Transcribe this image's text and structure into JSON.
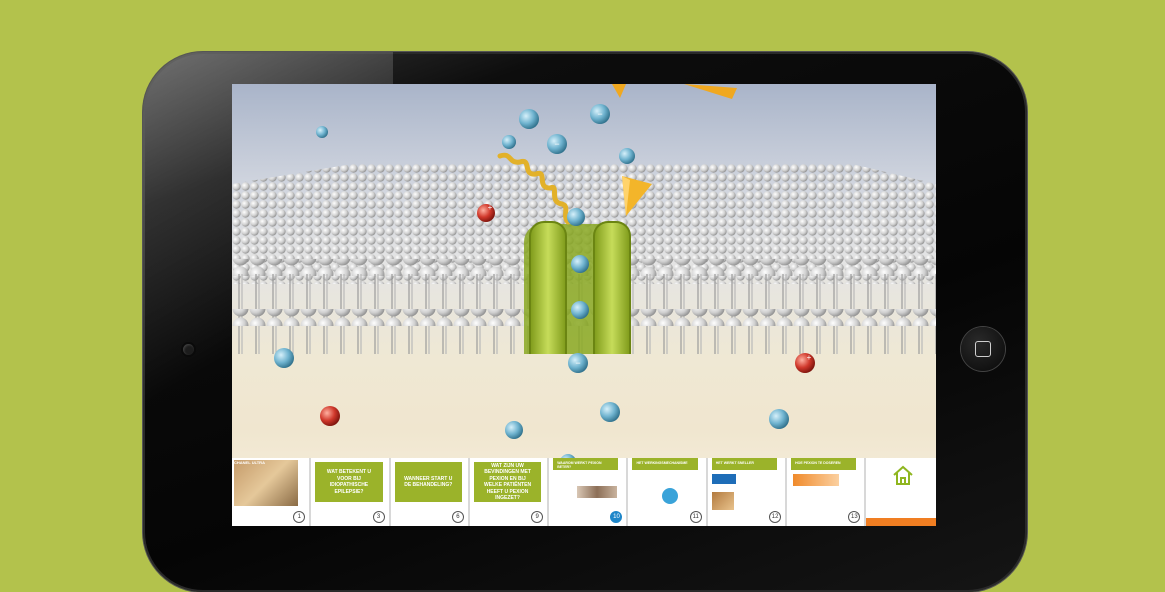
{
  "device": {
    "type": "tablet",
    "home_icon": "square-icon"
  },
  "colors": {
    "background": "#b3c24c",
    "channel": "#9bb32a",
    "anion": "#6fb3cf",
    "cation": "#d0382b",
    "ligand": "#f0a820"
  },
  "ions": {
    "anion_symbol": "−",
    "cation_symbol": "+"
  },
  "slides": [
    {
      "title": "CHANEL ULTRA",
      "number": "1"
    },
    {
      "title": "WAT BETEKENT U VOOR BIJ IDIOPATHISCHE EPILEPSIE?",
      "number": "3"
    },
    {
      "title": "WANNEER START U DE BEHANDELING?",
      "number": "6"
    },
    {
      "title": "WAT ZIJN UW BEVINDINGEN MET PEXION EN BIJ WELKE PATIËNTEN HEEFT U PEXION INGEZET?",
      "number": "9"
    },
    {
      "title": "WAAROM WERKT PEXION BETER?",
      "number": "10"
    },
    {
      "title": "HET WERKINGSMECHANISME",
      "number": "11"
    },
    {
      "title": "HET WERKT SNELLER",
      "number": "12"
    },
    {
      "title": "HOE PEXION TE DOSEREN",
      "number": "13"
    }
  ]
}
